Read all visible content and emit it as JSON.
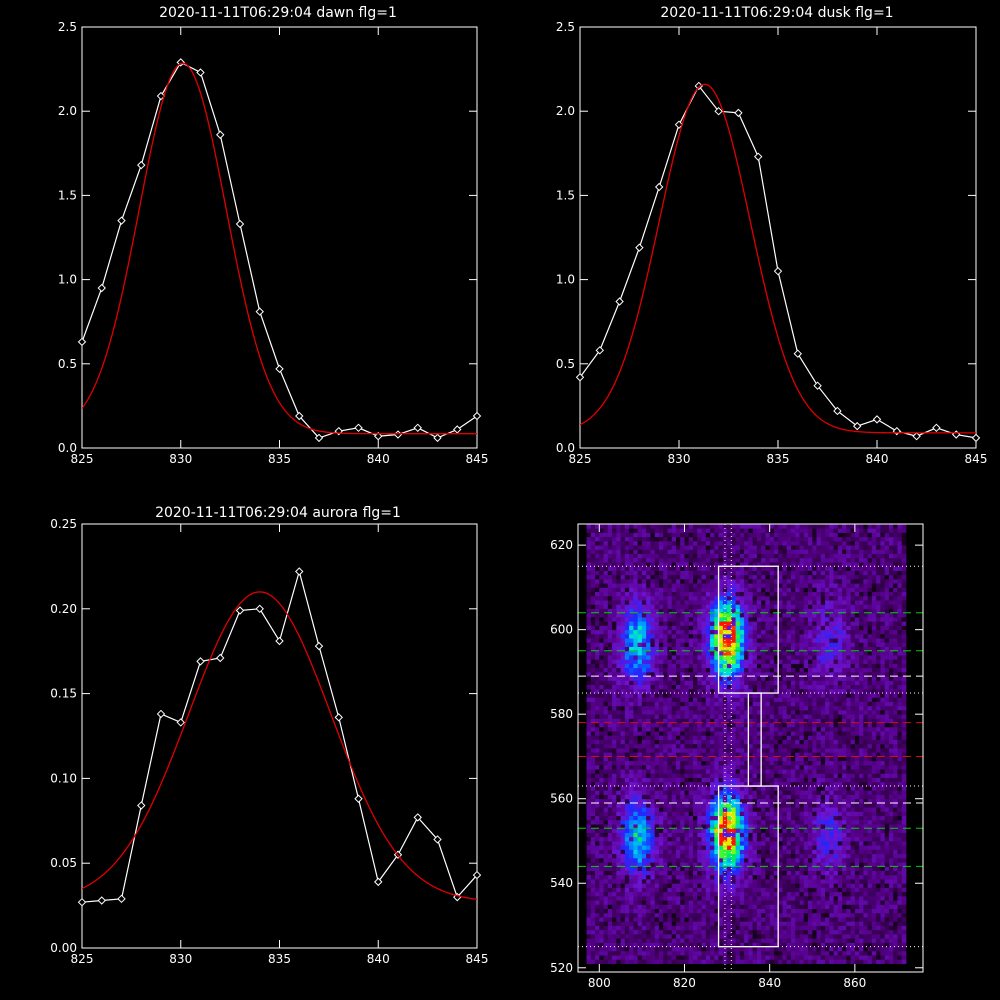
{
  "colors": {
    "background": "#000000",
    "axis": "#ffffff",
    "data_line": "#ffffff",
    "fit_line": "#e00000",
    "green_guide": "#00d000",
    "red_guide": "#d01010",
    "white_guide": "#ffffff"
  },
  "chart_data": [
    {
      "type": "line",
      "title": "2020-11-11T06:29:04 dawn flg=1",
      "xlabel": "",
      "ylabel": "",
      "xlim": [
        825,
        845
      ],
      "ylim": [
        0,
        2.5
      ],
      "xticks": [
        "825",
        "830",
        "835",
        "840",
        "845"
      ],
      "yticks": [
        "0.0",
        "0.5",
        "1.0",
        "1.5",
        "2.0",
        "2.5"
      ],
      "series": [
        {
          "marker": "diamond",
          "color": "#ffffff",
          "x": [
            825,
            826,
            827,
            828,
            829,
            830,
            831,
            832,
            833,
            834,
            835,
            836,
            837,
            838,
            839,
            840,
            841,
            842,
            843,
            844,
            845
          ],
          "y": [
            0.63,
            0.95,
            1.35,
            1.68,
            2.09,
            2.29,
            2.23,
            1.86,
            1.33,
            0.81,
            0.47,
            0.19,
            0.06,
            0.1,
            0.12,
            0.07,
            0.08,
            0.12,
            0.06,
            0.11,
            0.19
          ]
        },
        {
          "color": "#e00000",
          "fit": {
            "amp": 2.2,
            "center": 830.1,
            "sigma": 2.2,
            "offset": 0.085
          }
        }
      ]
    },
    {
      "type": "line",
      "title": "2020-11-11T06:29:04 dusk flg=1",
      "xlabel": "",
      "ylabel": "",
      "xlim": [
        825,
        845
      ],
      "ylim": [
        0,
        2.5
      ],
      "xticks": [
        "825",
        "830",
        "835",
        "840",
        "845"
      ],
      "yticks": [
        "0.0",
        "0.5",
        "1.0",
        "1.5",
        "2.0",
        "2.5"
      ],
      "series": [
        {
          "marker": "diamond",
          "color": "#ffffff",
          "x": [
            825,
            826,
            827,
            828,
            829,
            830,
            831,
            832,
            833,
            834,
            835,
            836,
            837,
            838,
            839,
            840,
            841,
            842,
            843,
            844,
            845
          ],
          "y": [
            0.42,
            0.58,
            0.87,
            1.19,
            1.55,
            1.92,
            2.15,
            2.0,
            1.99,
            1.73,
            1.05,
            0.56,
            0.37,
            0.22,
            0.13,
            0.17,
            0.1,
            0.07,
            0.12,
            0.08,
            0.06
          ]
        },
        {
          "color": "#e00000",
          "fit": {
            "amp": 2.07,
            "center": 831.3,
            "sigma": 2.3,
            "offset": 0.09
          }
        }
      ]
    },
    {
      "type": "line",
      "title": "2020-11-11T06:29:04 aurora flg=1",
      "xlabel": "",
      "ylabel": "",
      "xlim": [
        825,
        845
      ],
      "ylim": [
        0,
        0.25
      ],
      "xticks": [
        "825",
        "830",
        "835",
        "840",
        "845"
      ],
      "yticks": [
        "0.00",
        "0.05",
        "0.10",
        "0.15",
        "0.20",
        "0.25"
      ],
      "series": [
        {
          "marker": "diamond",
          "color": "#ffffff",
          "x": [
            825,
            826,
            827,
            828,
            829,
            830,
            831,
            832,
            833,
            834,
            835,
            836,
            837,
            838,
            839,
            840,
            841,
            842,
            843,
            844,
            845
          ],
          "y": [
            0.027,
            0.028,
            0.029,
            0.084,
            0.138,
            0.133,
            0.169,
            0.171,
            0.199,
            0.2,
            0.181,
            0.222,
            0.178,
            0.136,
            0.088,
            0.039,
            0.055,
            0.077,
            0.064,
            0.03,
            0.043
          ]
        },
        {
          "color": "#e00000",
          "fit": {
            "amp": 0.183,
            "center": 834.0,
            "sigma": 3.6,
            "offset": 0.027
          }
        }
      ]
    },
    {
      "type": "heatmap",
      "title": "",
      "xlabel": "",
      "ylabel": "",
      "xlim": [
        795,
        876
      ],
      "ylim": [
        519,
        625
      ],
      "xticks": [
        "800",
        "820",
        "840",
        "860"
      ],
      "yticks": [
        "520",
        "540",
        "560",
        "580",
        "600",
        "620"
      ],
      "colormap": "rainbow",
      "blobs": [
        {
          "x": 830,
          "y": 598,
          "intensity": 1.0
        },
        {
          "x": 830,
          "y": 552,
          "intensity": 1.0
        },
        {
          "x": 809,
          "y": 597,
          "intensity": 0.5
        },
        {
          "x": 809,
          "y": 551,
          "intensity": 0.5
        },
        {
          "x": 854,
          "y": 598,
          "intensity": 0.22
        },
        {
          "x": 854,
          "y": 551,
          "intensity": 0.22
        }
      ],
      "boxes": [
        {
          "x0": 828,
          "x1": 842,
          "y0": 585,
          "y1": 615
        },
        {
          "x0": 835,
          "x1": 838,
          "y0": 563,
          "y1": 585
        },
        {
          "x0": 828,
          "x1": 842,
          "y0": 525,
          "y1": 563
        }
      ],
      "hlines": [
        {
          "y": 615,
          "color": "#ffffff",
          "style": "dotted"
        },
        {
          "y": 604,
          "color": "#00d000",
          "style": "dashed"
        },
        {
          "y": 595,
          "color": "#00d000",
          "style": "dashed"
        },
        {
          "y": 589,
          "color": "#ffffff",
          "style": "dashed"
        },
        {
          "y": 585,
          "color": "#ffffff",
          "style": "dotted"
        },
        {
          "y": 578,
          "color": "#d01010",
          "style": "dashed"
        },
        {
          "y": 570,
          "color": "#d01010",
          "style": "dashed"
        },
        {
          "y": 563,
          "color": "#ffffff",
          "style": "dotted"
        },
        {
          "y": 559,
          "color": "#ffffff",
          "style": "dashed"
        },
        {
          "y": 553,
          "color": "#00d000",
          "style": "dashed"
        },
        {
          "y": 544,
          "color": "#00d000",
          "style": "dashed"
        },
        {
          "y": 525,
          "color": "#ffffff",
          "style": "dotted"
        }
      ],
      "vlines": [
        {
          "x": 829.5,
          "color": "#ffffff",
          "style": "dotted"
        },
        {
          "x": 831,
          "color": "#ffffff",
          "style": "dotted"
        }
      ]
    }
  ]
}
